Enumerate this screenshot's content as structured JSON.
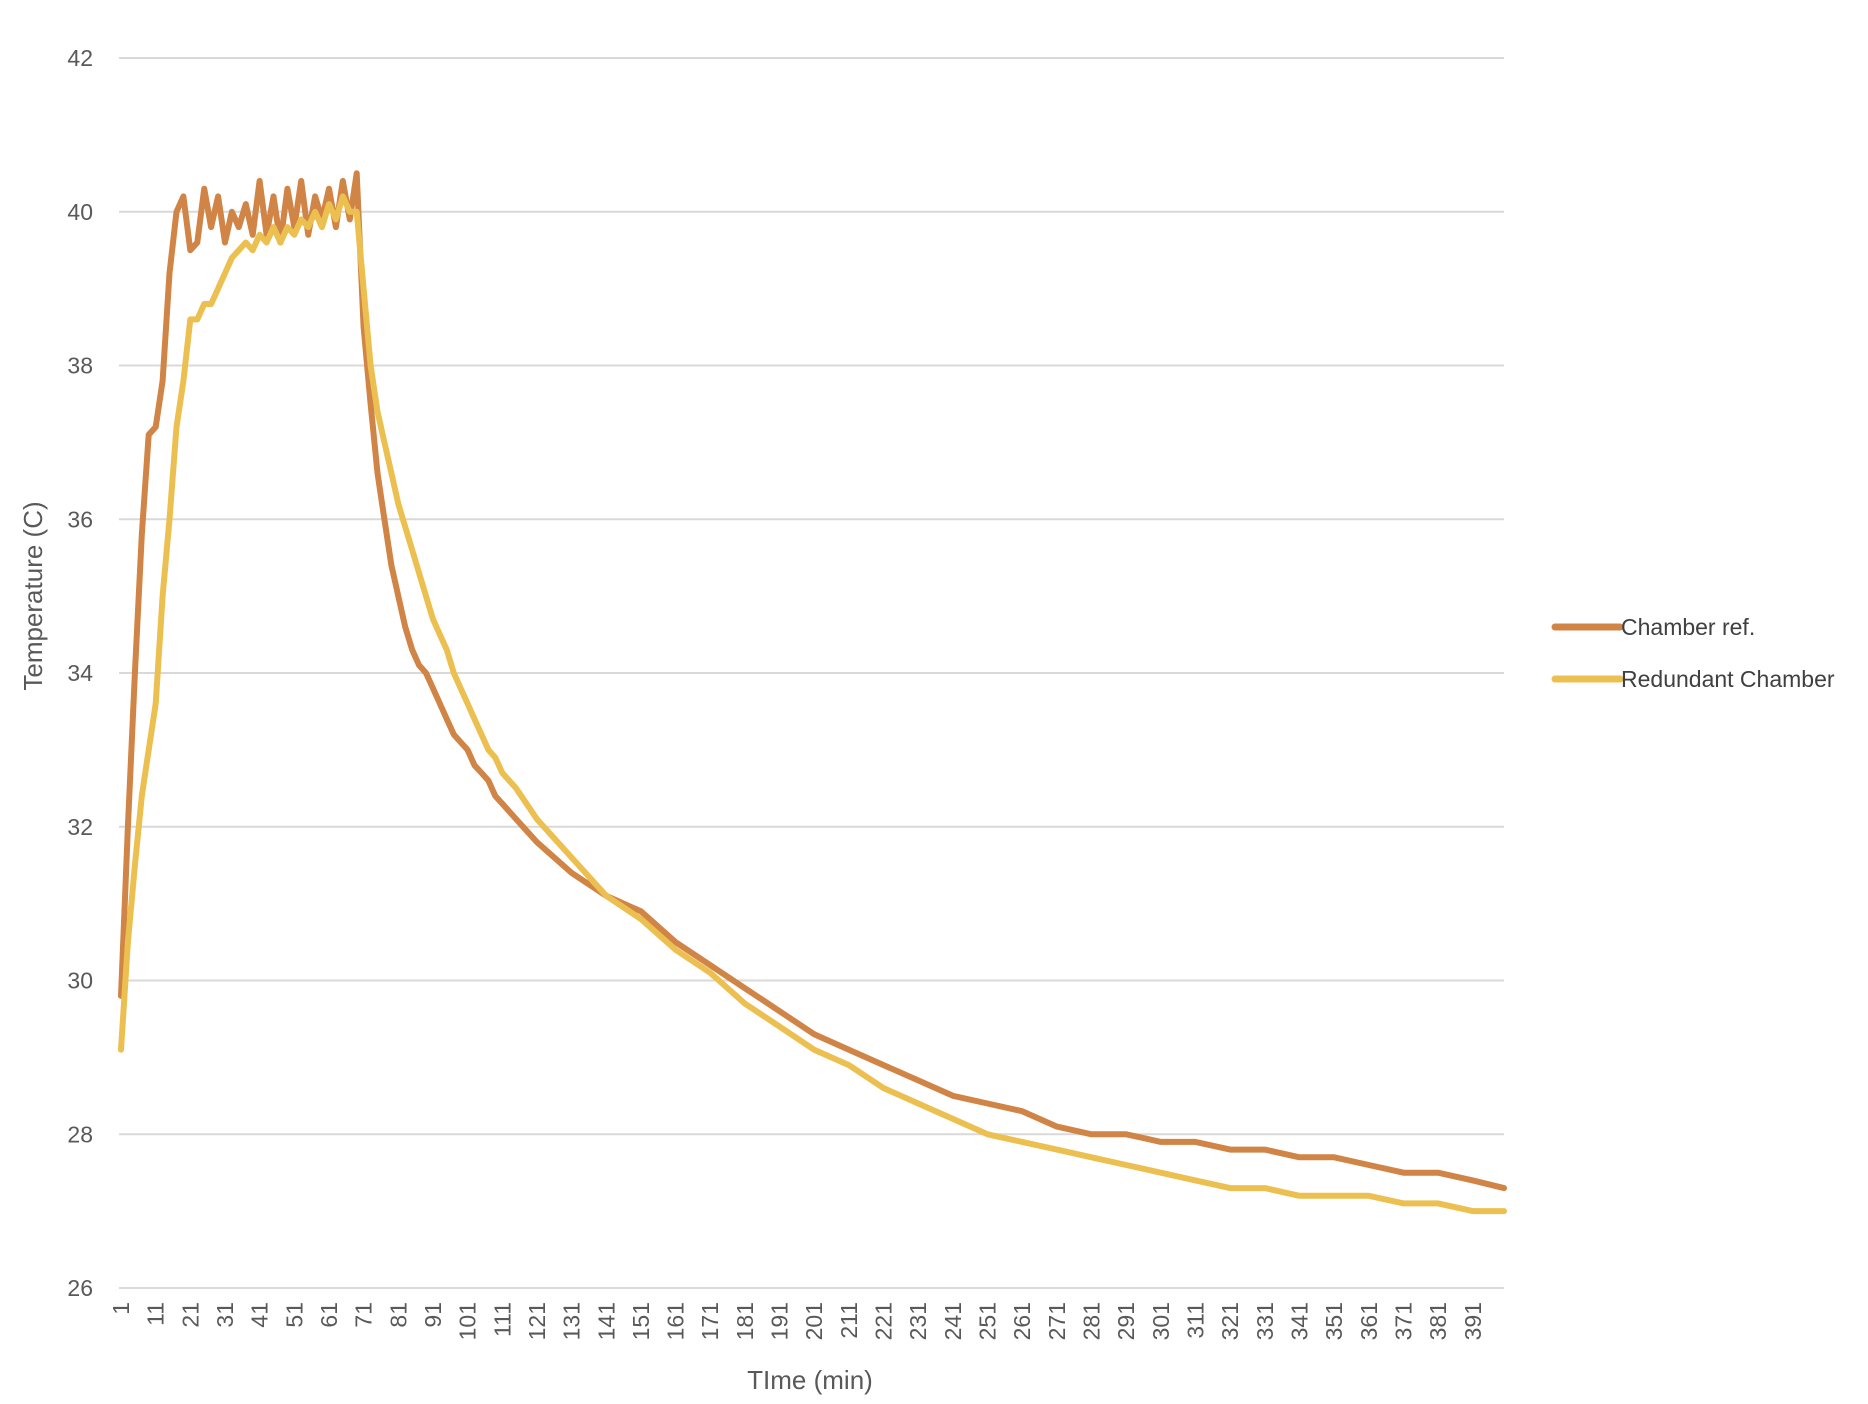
{
  "chart_data": {
    "type": "line",
    "title": "",
    "xlabel": "TIme (min)",
    "ylabel": "Temperature (C)",
    "ylim": [
      26,
      42
    ],
    "yticks": [
      "26",
      "28",
      "30",
      "32",
      "34",
      "36",
      "38",
      "40",
      "42"
    ],
    "xlim": [
      1,
      400
    ],
    "xticks": [
      "1",
      "11",
      "21",
      "31",
      "41",
      "51",
      "61",
      "71",
      "81",
      "91",
      "101",
      "111",
      "121",
      "131",
      "141",
      "151",
      "161",
      "171",
      "181",
      "191",
      "201",
      "211",
      "221",
      "231",
      "241",
      "251",
      "261",
      "271",
      "281",
      "291",
      "301",
      "311",
      "321",
      "331",
      "341",
      "351",
      "361",
      "371",
      "381",
      "391"
    ],
    "grid": "horizontal",
    "legend": "right",
    "series": [
      {
        "name": "Chamber ref.",
        "color": "#D08445",
        "points": [
          [
            1,
            29.8
          ],
          [
            3,
            32.0
          ],
          [
            5,
            34.0
          ],
          [
            7,
            35.8
          ],
          [
            9,
            37.1
          ],
          [
            11,
            37.2
          ],
          [
            13,
            37.8
          ],
          [
            15,
            39.2
          ],
          [
            17,
            40.0
          ],
          [
            19,
            40.2
          ],
          [
            21,
            39.5
          ],
          [
            23,
            39.6
          ],
          [
            25,
            40.3
          ],
          [
            27,
            39.8
          ],
          [
            29,
            40.2
          ],
          [
            31,
            39.6
          ],
          [
            33,
            40.0
          ],
          [
            35,
            39.8
          ],
          [
            37,
            40.1
          ],
          [
            39,
            39.7
          ],
          [
            41,
            40.4
          ],
          [
            43,
            39.7
          ],
          [
            45,
            40.2
          ],
          [
            47,
            39.6
          ],
          [
            49,
            40.3
          ],
          [
            51,
            39.8
          ],
          [
            53,
            40.4
          ],
          [
            55,
            39.7
          ],
          [
            57,
            40.2
          ],
          [
            59,
            39.9
          ],
          [
            61,
            40.3
          ],
          [
            63,
            39.8
          ],
          [
            65,
            40.4
          ],
          [
            67,
            39.9
          ],
          [
            69,
            40.5
          ],
          [
            71,
            38.5
          ],
          [
            73,
            37.5
          ],
          [
            75,
            36.6
          ],
          [
            77,
            36.0
          ],
          [
            79,
            35.4
          ],
          [
            81,
            35.0
          ],
          [
            83,
            34.6
          ],
          [
            85,
            34.3
          ],
          [
            87,
            34.1
          ],
          [
            89,
            34.0
          ],
          [
            91,
            33.8
          ],
          [
            93,
            33.6
          ],
          [
            95,
            33.4
          ],
          [
            97,
            33.2
          ],
          [
            99,
            33.1
          ],
          [
            101,
            33.0
          ],
          [
            103,
            32.8
          ],
          [
            105,
            32.7
          ],
          [
            107,
            32.6
          ],
          [
            109,
            32.4
          ],
          [
            111,
            32.3
          ],
          [
            115,
            32.1
          ],
          [
            121,
            31.8
          ],
          [
            131,
            31.4
          ],
          [
            141,
            31.1
          ],
          [
            151,
            30.9
          ],
          [
            161,
            30.5
          ],
          [
            171,
            30.2
          ],
          [
            181,
            29.9
          ],
          [
            191,
            29.6
          ],
          [
            201,
            29.3
          ],
          [
            211,
            29.1
          ],
          [
            221,
            28.9
          ],
          [
            231,
            28.7
          ],
          [
            241,
            28.5
          ],
          [
            251,
            28.4
          ],
          [
            261,
            28.3
          ],
          [
            271,
            28.1
          ],
          [
            281,
            28.0
          ],
          [
            291,
            28.0
          ],
          [
            301,
            27.9
          ],
          [
            311,
            27.9
          ],
          [
            321,
            27.8
          ],
          [
            331,
            27.8
          ],
          [
            341,
            27.7
          ],
          [
            351,
            27.7
          ],
          [
            361,
            27.6
          ],
          [
            371,
            27.5
          ],
          [
            381,
            27.5
          ],
          [
            391,
            27.4
          ],
          [
            400,
            27.3
          ]
        ]
      },
      {
        "name": "Redundant Chamber",
        "color": "#ECC050",
        "points": [
          [
            1,
            29.1
          ],
          [
            3,
            30.5
          ],
          [
            5,
            31.5
          ],
          [
            7,
            32.4
          ],
          [
            9,
            33.0
          ],
          [
            11,
            33.6
          ],
          [
            13,
            35.0
          ],
          [
            15,
            36.0
          ],
          [
            17,
            37.2
          ],
          [
            19,
            37.8
          ],
          [
            21,
            38.6
          ],
          [
            23,
            38.6
          ],
          [
            25,
            38.8
          ],
          [
            27,
            38.8
          ],
          [
            29,
            39.0
          ],
          [
            31,
            39.2
          ],
          [
            33,
            39.4
          ],
          [
            35,
            39.5
          ],
          [
            37,
            39.6
          ],
          [
            39,
            39.5
          ],
          [
            41,
            39.7
          ],
          [
            43,
            39.6
          ],
          [
            45,
            39.8
          ],
          [
            47,
            39.6
          ],
          [
            49,
            39.8
          ],
          [
            51,
            39.7
          ],
          [
            53,
            39.9
          ],
          [
            55,
            39.8
          ],
          [
            57,
            40.0
          ],
          [
            59,
            39.8
          ],
          [
            61,
            40.1
          ],
          [
            63,
            39.9
          ],
          [
            65,
            40.2
          ],
          [
            67,
            40.0
          ],
          [
            69,
            40.0
          ],
          [
            71,
            39.0
          ],
          [
            73,
            38.0
          ],
          [
            75,
            37.4
          ],
          [
            77,
            37.0
          ],
          [
            79,
            36.6
          ],
          [
            81,
            36.2
          ],
          [
            83,
            35.9
          ],
          [
            85,
            35.6
          ],
          [
            87,
            35.3
          ],
          [
            89,
            35.0
          ],
          [
            91,
            34.7
          ],
          [
            93,
            34.5
          ],
          [
            95,
            34.3
          ],
          [
            97,
            34.0
          ],
          [
            99,
            33.8
          ],
          [
            101,
            33.6
          ],
          [
            103,
            33.4
          ],
          [
            105,
            33.2
          ],
          [
            107,
            33.0
          ],
          [
            109,
            32.9
          ],
          [
            111,
            32.7
          ],
          [
            115,
            32.5
          ],
          [
            121,
            32.1
          ],
          [
            131,
            31.6
          ],
          [
            141,
            31.1
          ],
          [
            151,
            30.8
          ],
          [
            161,
            30.4
          ],
          [
            171,
            30.1
          ],
          [
            181,
            29.7
          ],
          [
            191,
            29.4
          ],
          [
            201,
            29.1
          ],
          [
            211,
            28.9
          ],
          [
            221,
            28.6
          ],
          [
            231,
            28.4
          ],
          [
            241,
            28.2
          ],
          [
            251,
            28.0
          ],
          [
            261,
            27.9
          ],
          [
            271,
            27.8
          ],
          [
            281,
            27.7
          ],
          [
            291,
            27.6
          ],
          [
            301,
            27.5
          ],
          [
            311,
            27.4
          ],
          [
            321,
            27.3
          ],
          [
            331,
            27.3
          ],
          [
            341,
            27.2
          ],
          [
            351,
            27.2
          ],
          [
            361,
            27.2
          ],
          [
            371,
            27.1
          ],
          [
            381,
            27.1
          ],
          [
            391,
            27.0
          ],
          [
            400,
            27.0
          ]
        ]
      }
    ]
  }
}
